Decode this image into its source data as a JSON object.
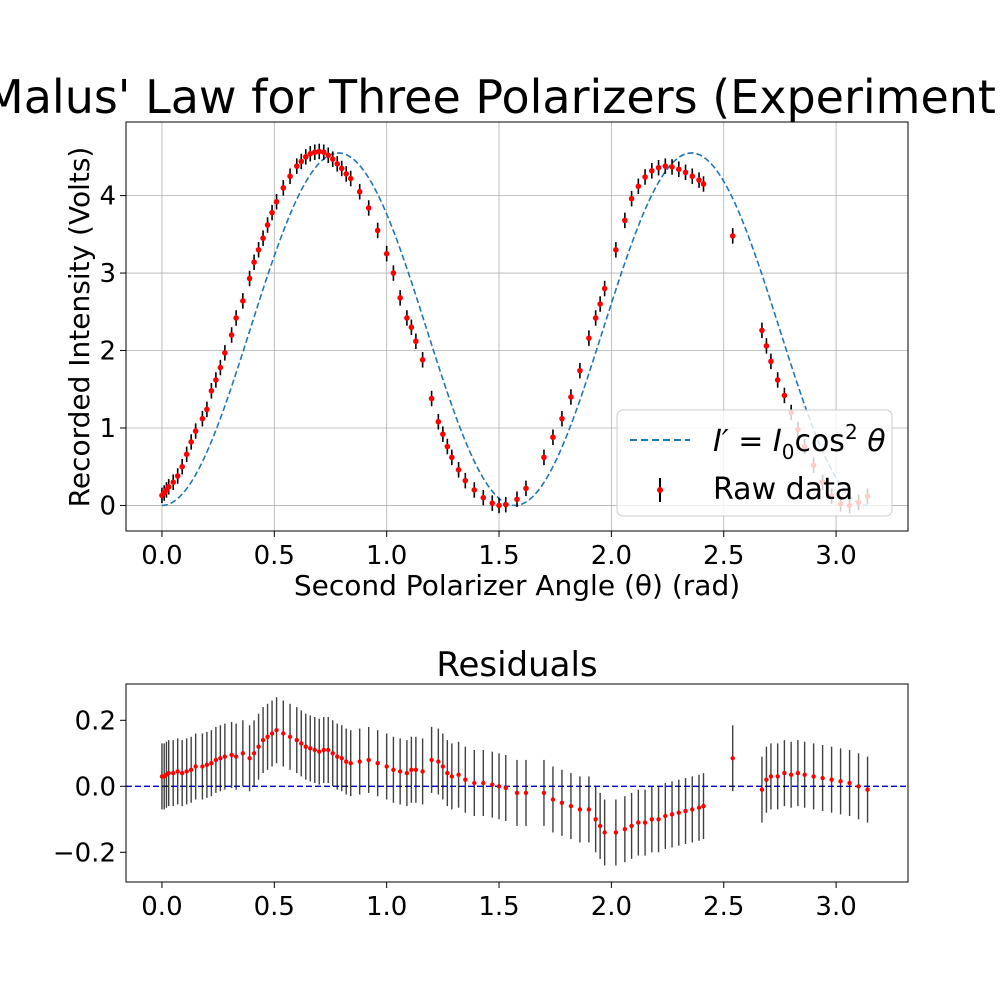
{
  "chart_data": [
    {
      "type": "scatter",
      "title": "Malus' Law for Three Polarizers (Experiment",
      "xlabel": "Second Polarizer Angle (θ) (rad)",
      "ylabel": "Recorded Intensity (Volts)",
      "xlim": [
        -0.16,
        3.32
      ],
      "ylim": [
        -0.33,
        4.95
      ],
      "xticks": [
        0.0,
        0.5,
        1.0,
        1.5,
        2.0,
        2.5,
        3.0
      ],
      "xtick_labels": [
        "0.0",
        "0.5",
        "1.0",
        "1.5",
        "2.0",
        "2.5",
        "3.0"
      ],
      "yticks": [
        0,
        1,
        2,
        3,
        4
      ],
      "ytick_labels": [
        "0",
        "1",
        "2",
        "3",
        "4"
      ],
      "grid": true,
      "legend": {
        "placement": "lower-right",
        "entries": [
          {
            "label_base": "I′ = I",
            "label_sub": "0",
            "label_rest": "cos",
            "label_sup": "2",
            "label_end": " θ",
            "style": "dashed-line",
            "color": "#1f77b4"
          },
          {
            "label": "Raw data",
            "style": "errorbar-point",
            "color": "#ff0000"
          }
        ]
      },
      "fit_model": "I0*cos^2(theta)*sin^2(theta) with I0 ~ 18.2",
      "series": [
        {
          "name": "Raw data",
          "color": "#ff0000",
          "errorbar_color": "#000000",
          "yerr": 0.1,
          "x": [
            0.0,
            0.01,
            0.02,
            0.03,
            0.05,
            0.07,
            0.09,
            0.11,
            0.13,
            0.15,
            0.18,
            0.2,
            0.22,
            0.24,
            0.26,
            0.28,
            0.31,
            0.33,
            0.36,
            0.39,
            0.41,
            0.43,
            0.45,
            0.47,
            0.49,
            0.51,
            0.54,
            0.57,
            0.6,
            0.62,
            0.64,
            0.66,
            0.68,
            0.7,
            0.72,
            0.74,
            0.76,
            0.78,
            0.8,
            0.82,
            0.84,
            0.88,
            0.92,
            0.96,
            1.0,
            1.03,
            1.06,
            1.09,
            1.11,
            1.13,
            1.16,
            1.2,
            1.23,
            1.25,
            1.27,
            1.29,
            1.32,
            1.35,
            1.39,
            1.43,
            1.47,
            1.5,
            1.53,
            1.58,
            1.62,
            1.7,
            1.74,
            1.78,
            1.82,
            1.86,
            1.9,
            1.93,
            1.95,
            1.97,
            2.02,
            2.06,
            2.09,
            2.12,
            2.15,
            2.18,
            2.21,
            2.24,
            2.27,
            2.3,
            2.33,
            2.36,
            2.39,
            2.41,
            2.54,
            2.67,
            2.69,
            2.71,
            2.74,
            2.77,
            2.8,
            2.83,
            2.86,
            2.9,
            2.94,
            2.98,
            3.02,
            3.06,
            3.1,
            3.14
          ],
          "y": [
            0.13,
            0.16,
            0.2,
            0.24,
            0.3,
            0.38,
            0.5,
            0.66,
            0.82,
            0.96,
            1.12,
            1.24,
            1.48,
            1.62,
            1.78,
            1.97,
            2.2,
            2.42,
            2.64,
            2.93,
            3.14,
            3.3,
            3.45,
            3.62,
            3.78,
            3.92,
            4.1,
            4.25,
            4.38,
            4.44,
            4.5,
            4.54,
            4.56,
            4.57,
            4.56,
            4.52,
            4.47,
            4.41,
            4.35,
            4.28,
            4.22,
            4.05,
            3.84,
            3.55,
            3.25,
            3.0,
            2.68,
            2.42,
            2.3,
            2.12,
            1.88,
            1.38,
            1.08,
            0.92,
            0.76,
            0.62,
            0.46,
            0.32,
            0.2,
            0.1,
            0.03,
            0.0,
            0.01,
            0.08,
            0.22,
            0.62,
            0.88,
            1.12,
            1.4,
            1.74,
            2.16,
            2.42,
            2.6,
            2.8,
            3.3,
            3.68,
            3.96,
            4.12,
            4.24,
            4.32,
            4.36,
            4.38,
            4.37,
            4.34,
            4.3,
            4.25,
            4.2,
            4.15,
            3.48,
            2.26,
            2.06,
            1.86,
            1.62,
            1.42,
            1.2,
            0.98,
            0.76,
            0.52,
            0.3,
            0.12,
            0.02,
            0.0,
            0.04,
            0.12
          ]
        }
      ]
    },
    {
      "type": "scatter",
      "title": "Residuals",
      "xlim": [
        -0.16,
        3.32
      ],
      "ylim": [
        -0.29,
        0.31
      ],
      "xticks": [
        0.0,
        0.5,
        1.0,
        1.5,
        2.0,
        2.5,
        3.0
      ],
      "xtick_labels": [
        "0.0",
        "0.5",
        "1.0",
        "1.5",
        "2.0",
        "2.5",
        "3.0"
      ],
      "yticks": [
        -0.2,
        0.0,
        0.2
      ],
      "ytick_labels": [
        "−0.2",
        "0.0",
        "0.2"
      ],
      "grid": false,
      "zero_line": {
        "value": 0.0,
        "color": "#0000cc",
        "style": "dashed"
      },
      "series": [
        {
          "name": "Residuals",
          "color": "#ff0000",
          "errorbar_color": "#000000",
          "yerr": 0.1,
          "x": [
            0.0,
            0.01,
            0.02,
            0.03,
            0.05,
            0.07,
            0.09,
            0.11,
            0.13,
            0.15,
            0.18,
            0.2,
            0.22,
            0.24,
            0.26,
            0.28,
            0.31,
            0.33,
            0.36,
            0.39,
            0.41,
            0.43,
            0.45,
            0.47,
            0.49,
            0.51,
            0.54,
            0.57,
            0.6,
            0.62,
            0.64,
            0.66,
            0.68,
            0.7,
            0.72,
            0.74,
            0.76,
            0.78,
            0.8,
            0.82,
            0.84,
            0.88,
            0.92,
            0.96,
            1.0,
            1.03,
            1.06,
            1.09,
            1.11,
            1.13,
            1.16,
            1.2,
            1.23,
            1.25,
            1.27,
            1.29,
            1.32,
            1.35,
            1.39,
            1.43,
            1.47,
            1.5,
            1.53,
            1.58,
            1.62,
            1.7,
            1.74,
            1.78,
            1.82,
            1.86,
            1.9,
            1.93,
            1.95,
            1.97,
            2.02,
            2.06,
            2.09,
            2.12,
            2.15,
            2.18,
            2.21,
            2.24,
            2.27,
            2.3,
            2.33,
            2.36,
            2.39,
            2.41,
            2.54,
            2.67,
            2.69,
            2.71,
            2.74,
            2.77,
            2.8,
            2.83,
            2.86,
            2.9,
            2.94,
            2.98,
            3.02,
            3.06,
            3.1,
            3.14
          ],
          "y": [
            0.03,
            0.03,
            0.035,
            0.04,
            0.04,
            0.045,
            0.04,
            0.045,
            0.05,
            0.06,
            0.06,
            0.065,
            0.07,
            0.08,
            0.085,
            0.09,
            0.095,
            0.09,
            0.1,
            0.085,
            0.1,
            0.12,
            0.14,
            0.15,
            0.16,
            0.17,
            0.16,
            0.15,
            0.14,
            0.13,
            0.12,
            0.115,
            0.11,
            0.105,
            0.11,
            0.11,
            0.1,
            0.09,
            0.085,
            0.075,
            0.07,
            0.075,
            0.08,
            0.07,
            0.06,
            0.05,
            0.045,
            0.04,
            0.05,
            0.05,
            0.045,
            0.08,
            0.075,
            0.06,
            0.04,
            0.03,
            0.035,
            0.02,
            0.01,
            0.01,
            0.005,
            0.0,
            -0.005,
            -0.02,
            -0.02,
            -0.02,
            -0.04,
            -0.05,
            -0.06,
            -0.07,
            -0.07,
            -0.1,
            -0.12,
            -0.14,
            -0.14,
            -0.13,
            -0.12,
            -0.11,
            -0.11,
            -0.1,
            -0.1,
            -0.09,
            -0.085,
            -0.08,
            -0.075,
            -0.07,
            -0.065,
            -0.06,
            0.085,
            -0.01,
            0.02,
            0.03,
            0.03,
            0.04,
            0.035,
            0.04,
            0.035,
            0.03,
            0.025,
            0.02,
            0.015,
            0.01,
            0.0,
            -0.01
          ]
        }
      ]
    }
  ]
}
